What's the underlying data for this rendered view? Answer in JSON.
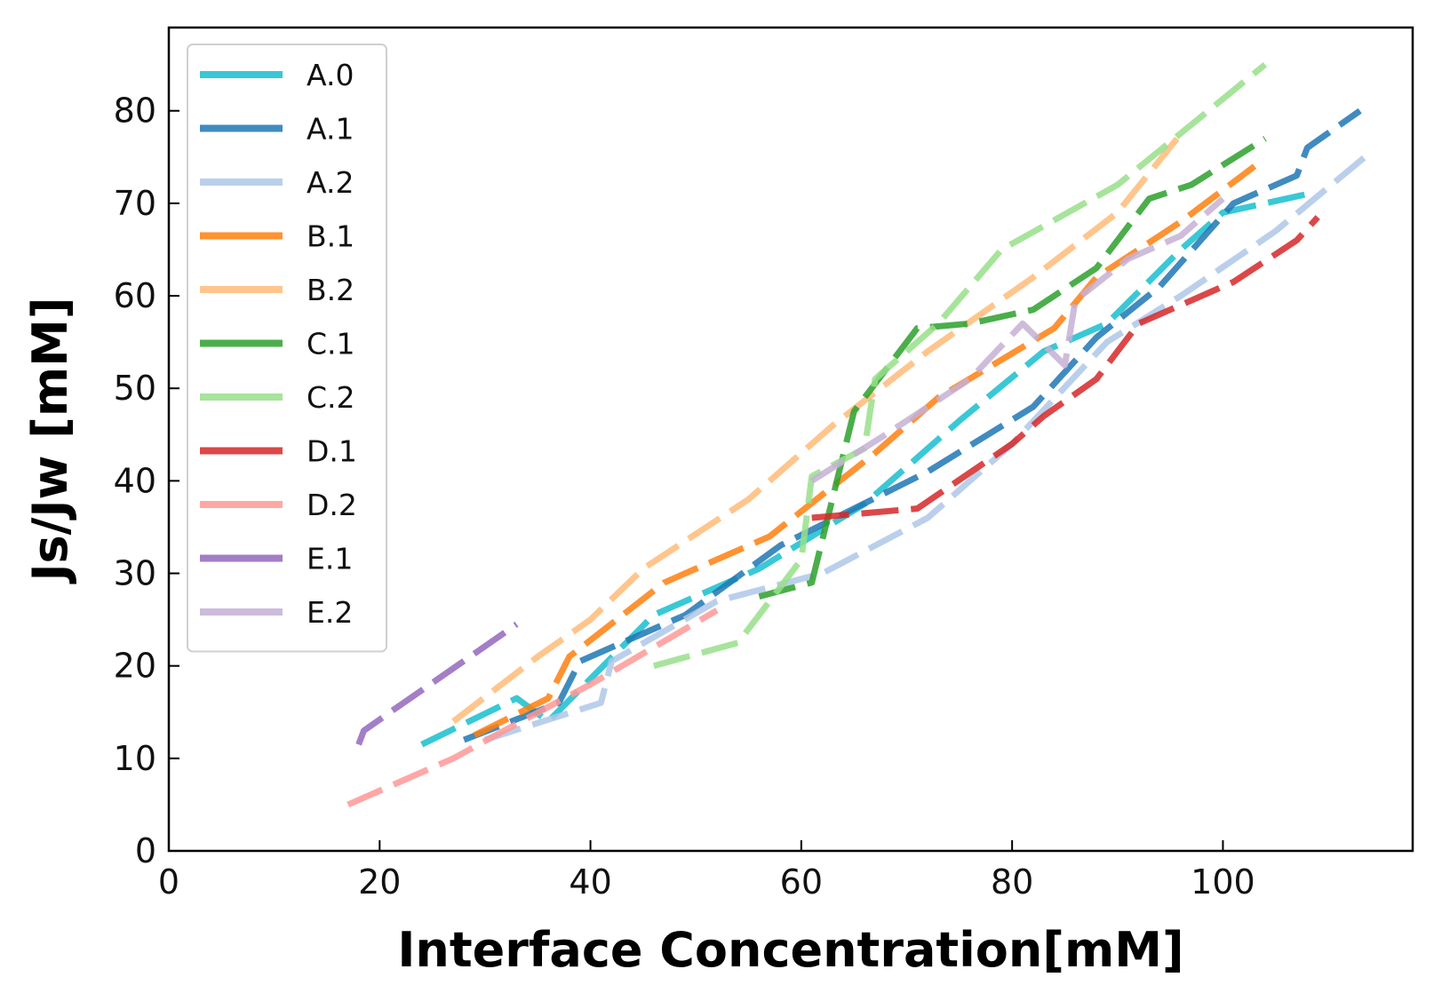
{
  "chart_data": {
    "type": "line",
    "title": "",
    "xlabel": "Interface Concentration[mM]",
    "ylabel": "Js/Jw [mM]",
    "xlim": [
      0,
      118
    ],
    "ylim": [
      0,
      89
    ],
    "xticks": [
      0,
      20,
      40,
      60,
      80,
      100
    ],
    "yticks": [
      0,
      10,
      20,
      30,
      40,
      50,
      60,
      70,
      80
    ],
    "grid": false,
    "legend_position": "upper-left",
    "series": [
      {
        "name": "A.0",
        "color": "#17becf",
        "x": [
          24,
          33,
          36,
          46,
          56,
          66,
          75,
          83,
          89,
          96,
          100,
          108
        ],
        "y": [
          11.5,
          16.5,
          14,
          25.5,
          30.5,
          37.5,
          46.5,
          54,
          57,
          65,
          69,
          71
        ]
      },
      {
        "name": "A.1",
        "color": "#1f77b4",
        "x": [
          28,
          37,
          39,
          49,
          58,
          72,
          82,
          88,
          94,
          101,
          107,
          108,
          113
        ],
        "y": [
          12,
          16,
          20.5,
          25.5,
          33,
          41,
          48,
          55.5,
          61,
          70,
          73,
          76,
          80
        ]
      },
      {
        "name": "A.2",
        "color": "#aec7e8",
        "x": [
          30,
          41,
          42,
          52,
          62,
          72,
          80,
          89,
          96,
          105,
          114
        ],
        "y": [
          12,
          16,
          20.5,
          27,
          30,
          36,
          44,
          55,
          60,
          67,
          75.5
        ]
      },
      {
        "name": "B.1",
        "color": "#ff7f0e",
        "x": [
          29,
          36,
          38,
          47,
          57,
          67,
          73,
          84,
          88,
          96,
          103
        ],
        "y": [
          12.5,
          16.5,
          21,
          29,
          34,
          43,
          49,
          56.5,
          62,
          68,
          74
        ]
      },
      {
        "name": "B.2",
        "color": "#ffbb78",
        "x": [
          27,
          35,
          40,
          45,
          55,
          63,
          72,
          82,
          90,
          96
        ],
        "y": [
          14,
          21,
          25,
          30.5,
          38,
          46,
          54,
          62,
          69,
          77.5
        ]
      },
      {
        "name": "C.1",
        "color": "#2ca02c",
        "x": [
          56,
          61,
          65,
          71,
          76,
          82,
          88,
          93,
          97,
          104
        ],
        "y": [
          27.5,
          29,
          47.5,
          56.5,
          57,
          58.5,
          63,
          70.5,
          72,
          77
        ]
      },
      {
        "name": "C.2",
        "color": "#98df8a",
        "x": [
          46,
          54,
          60,
          61,
          66,
          67,
          73,
          79,
          90,
          104
        ],
        "y": [
          20,
          22.5,
          31.5,
          40.5,
          43.5,
          51,
          57,
          65,
          72,
          85
        ]
      },
      {
        "name": "D.1",
        "color": "#d62728",
        "x": [
          61,
          71,
          80,
          83,
          88,
          92,
          101,
          107,
          109
        ],
        "y": [
          36,
          37,
          44,
          47,
          51,
          57,
          61.5,
          66,
          68.5
        ]
      },
      {
        "name": "D.2",
        "color": "#ff9896",
        "x": [
          17,
          27,
          31,
          40,
          52
        ],
        "y": [
          5,
          10,
          12.5,
          18,
          26
        ]
      },
      {
        "name": "E.1",
        "color": "#9467bd",
        "x": [
          18,
          18.5,
          21,
          33
        ],
        "y": [
          11.5,
          13,
          15,
          24.5
        ]
      },
      {
        "name": "E.2",
        "color": "#c5b0d5",
        "x": [
          61,
          68,
          76,
          81,
          85,
          86,
          91,
          96,
          100
        ],
        "y": [
          40,
          45,
          51,
          57,
          52.5,
          59.5,
          64,
          66.5,
          70.5
        ]
      }
    ]
  }
}
